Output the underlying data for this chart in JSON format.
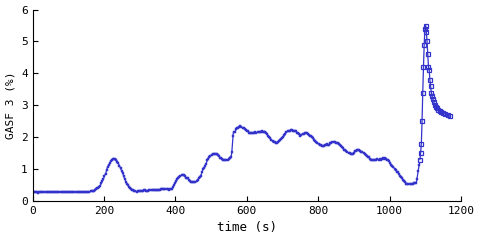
{
  "title": "",
  "xlabel": "time (s)",
  "ylabel": "GASF 3 (%)",
  "xlim": [
    0,
    1200
  ],
  "ylim": [
    0,
    6
  ],
  "xticks": [
    0,
    200,
    400,
    600,
    800,
    1000,
    1200
  ],
  "yticks": [
    0,
    1,
    2,
    3,
    4,
    5,
    6
  ],
  "line_color": "#3333cc",
  "marker": "s",
  "markersize": 3,
  "linewidth": 0.9,
  "bg_color": "#ffffff",
  "font": "monospace"
}
